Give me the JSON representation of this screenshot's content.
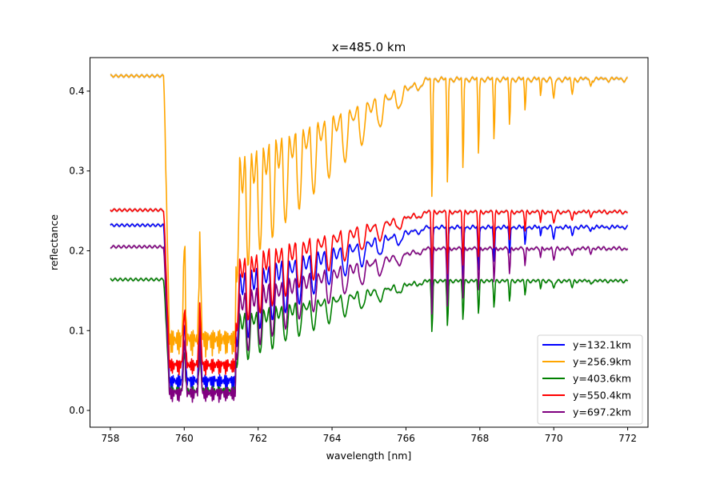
{
  "chart_data": {
    "type": "line",
    "title": "x=485.0 km",
    "xlabel": "wavelength [nm]",
    "ylabel": "reflectance",
    "xlim": [
      757.45,
      772.55
    ],
    "ylim": [
      -0.021,
      0.442
    ],
    "xticks": [
      "758",
      "760",
      "762",
      "764",
      "766",
      "768",
      "770",
      "772"
    ],
    "yticks": [
      "0.0",
      "0.1",
      "0.2",
      "0.3",
      "0.4"
    ],
    "grid": false,
    "legend_position": "lower-right",
    "uncertainty_band_color": "#c8c8c8",
    "continuum_wavelength_range": [
      758,
      772
    ],
    "absorption_band_start_nm": 759.5,
    "series": [
      {
        "name": "y=132.1km",
        "color": "#0000ff",
        "continuum": 0.232,
        "trough": 0.02,
        "peak": 0.213
      },
      {
        "name": "y=256.9km",
        "color": "#ffa500",
        "continuum": 0.419,
        "trough": 0.06,
        "peak": 0.398
      },
      {
        "name": "y=403.6km",
        "color": "#008000",
        "continuum": 0.164,
        "trough": 0.012,
        "peak": 0.151
      },
      {
        "name": "y=550.4km",
        "color": "#ff0000",
        "continuum": 0.251,
        "trough": 0.04,
        "peak": 0.232
      },
      {
        "name": "y=697.2km",
        "color": "#800080",
        "continuum": 0.205,
        "trough": 0.006,
        "peak": 0.183
      }
    ]
  }
}
